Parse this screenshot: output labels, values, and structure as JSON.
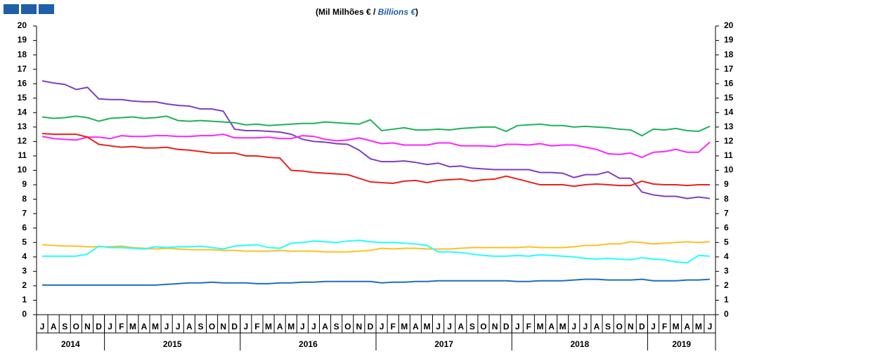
{
  "chart_data": {
    "type": "line",
    "title": [
      "(Mil Milhões € / ",
      "Billions €",
      ")"
    ],
    "categories": [
      "J",
      "A",
      "S",
      "O",
      "N",
      "D",
      "J",
      "F",
      "M",
      "A",
      "M",
      "J",
      "J",
      "A",
      "S",
      "O",
      "N",
      "D",
      "J",
      "F",
      "M",
      "A",
      "M",
      "J",
      "J",
      "A",
      "S",
      "O",
      "N",
      "D",
      "J",
      "F",
      "M",
      "A",
      "M",
      "J",
      "J",
      "A",
      "S",
      "O",
      "N",
      "D",
      "J",
      "F",
      "M",
      "A",
      "M",
      "J",
      "J",
      "A",
      "S",
      "O",
      "N",
      "D",
      "J",
      "F",
      "M",
      "A",
      "M",
      "J"
    ],
    "years": [
      "2014",
      "2015",
      "2016",
      "2017",
      "2018",
      "2019"
    ],
    "ylim": [
      0,
      20
    ],
    "yticks": [
      0,
      1,
      2,
      3,
      4,
      5,
      6,
      7,
      8,
      9,
      10,
      11,
      12,
      13,
      14,
      15,
      16,
      17,
      18,
      19,
      20
    ],
    "series": [
      {
        "color": "#7f3fbf",
        "values": [
          16.2,
          16.05,
          15.95,
          15.6,
          15.75,
          14.95,
          14.9,
          14.9,
          14.8,
          14.75,
          14.75,
          14.6,
          14.5,
          14.45,
          14.25,
          14.25,
          14.1,
          12.85,
          12.75,
          12.75,
          12.7,
          12.65,
          12.5,
          12.15,
          12.0,
          11.95,
          11.85,
          11.8,
          11.4,
          10.8,
          10.6,
          10.6,
          10.65,
          10.55,
          10.4,
          10.5,
          10.25,
          10.3,
          10.15,
          10.1,
          10.05,
          10.05,
          10.05,
          10.05,
          9.85,
          9.85,
          9.8,
          9.5,
          9.7,
          9.7,
          9.9,
          9.45,
          9.45,
          8.5,
          8.3,
          8.2,
          8.2,
          8.05,
          8.15,
          8.05
        ]
      },
      {
        "color": "#1db35a",
        "values": [
          13.7,
          13.6,
          13.65,
          13.75,
          13.65,
          13.4,
          13.6,
          13.65,
          13.7,
          13.6,
          13.65,
          13.75,
          13.45,
          13.4,
          13.45,
          13.4,
          13.35,
          13.3,
          13.15,
          13.2,
          13.1,
          13.15,
          13.2,
          13.25,
          13.25,
          13.35,
          13.3,
          13.25,
          13.2,
          13.5,
          12.75,
          12.85,
          12.95,
          12.8,
          12.8,
          12.85,
          12.8,
          12.9,
          12.95,
          13.0,
          13.0,
          12.7,
          13.1,
          13.15,
          13.2,
          13.1,
          13.1,
          13.0,
          13.05,
          13.0,
          12.95,
          12.85,
          12.8,
          12.4,
          12.85,
          12.8,
          12.9,
          12.75,
          12.7,
          13.05
        ]
      },
      {
        "color": "#ff22ff",
        "values": [
          12.35,
          12.2,
          12.15,
          12.1,
          12.3,
          12.3,
          12.2,
          12.4,
          12.35,
          12.35,
          12.4,
          12.4,
          12.35,
          12.35,
          12.4,
          12.4,
          12.5,
          12.25,
          12.25,
          12.25,
          12.3,
          12.2,
          12.2,
          12.4,
          12.35,
          12.15,
          12.05,
          12.1,
          12.25,
          12.05,
          11.85,
          11.9,
          11.75,
          11.75,
          11.75,
          11.9,
          11.9,
          11.7,
          11.7,
          11.7,
          11.65,
          11.8,
          11.8,
          11.75,
          11.85,
          11.7,
          11.75,
          11.75,
          11.6,
          11.45,
          11.15,
          11.1,
          11.2,
          10.9,
          11.25,
          11.3,
          11.45,
          11.25,
          11.25,
          11.95
        ]
      },
      {
        "color": "#e8221e",
        "values": [
          12.55,
          12.5,
          12.5,
          12.5,
          12.3,
          11.8,
          11.7,
          11.6,
          11.65,
          11.55,
          11.55,
          11.6,
          11.45,
          11.4,
          11.3,
          11.2,
          11.2,
          11.2,
          11.0,
          11.0,
          10.9,
          10.85,
          10.0,
          9.95,
          9.85,
          9.8,
          9.75,
          9.7,
          9.45,
          9.2,
          9.15,
          9.1,
          9.25,
          9.3,
          9.15,
          9.3,
          9.35,
          9.4,
          9.25,
          9.35,
          9.4,
          9.6,
          9.4,
          9.2,
          9.0,
          9.0,
          9.0,
          8.9,
          9.0,
          9.05,
          9.0,
          8.95,
          8.95,
          9.25,
          9.05,
          9.0,
          9.0,
          8.95,
          9.0,
          9.0
        ]
      },
      {
        "color": "#ffc020",
        "values": [
          4.85,
          4.8,
          4.75,
          4.75,
          4.7,
          4.7,
          4.7,
          4.75,
          4.65,
          4.6,
          4.55,
          4.6,
          4.55,
          4.5,
          4.5,
          4.5,
          4.45,
          4.45,
          4.4,
          4.4,
          4.4,
          4.45,
          4.4,
          4.4,
          4.4,
          4.35,
          4.35,
          4.35,
          4.4,
          4.45,
          4.6,
          4.55,
          4.6,
          4.6,
          4.55,
          4.55,
          4.55,
          4.6,
          4.65,
          4.65,
          4.65,
          4.65,
          4.65,
          4.7,
          4.65,
          4.65,
          4.65,
          4.7,
          4.8,
          4.8,
          4.9,
          4.9,
          5.05,
          5.0,
          4.9,
          4.95,
          5.0,
          5.05,
          5.0,
          5.05
        ]
      },
      {
        "color": "#22ffff",
        "values": [
          4.05,
          4.05,
          4.05,
          4.05,
          4.2,
          4.75,
          4.65,
          4.65,
          4.6,
          4.55,
          4.7,
          4.65,
          4.7,
          4.7,
          4.75,
          4.65,
          4.55,
          4.75,
          4.8,
          4.85,
          4.65,
          4.6,
          4.95,
          5.0,
          5.1,
          5.05,
          5.0,
          5.1,
          5.15,
          5.05,
          5.0,
          5.0,
          4.95,
          4.9,
          4.8,
          4.35,
          4.35,
          4.3,
          4.2,
          4.1,
          4.05,
          4.05,
          4.1,
          4.05,
          4.15,
          4.1,
          4.05,
          4.0,
          3.9,
          3.85,
          3.9,
          3.85,
          3.8,
          3.95,
          3.85,
          3.8,
          3.65,
          3.6,
          4.1,
          4.05
        ]
      },
      {
        "color": "#1f6fbf",
        "values": [
          2.05,
          2.05,
          2.05,
          2.05,
          2.05,
          2.05,
          2.05,
          2.05,
          2.05,
          2.05,
          2.05,
          2.1,
          2.15,
          2.2,
          2.2,
          2.25,
          2.2,
          2.2,
          2.2,
          2.15,
          2.15,
          2.2,
          2.2,
          2.25,
          2.25,
          2.3,
          2.3,
          2.3,
          2.3,
          2.3,
          2.2,
          2.25,
          2.25,
          2.3,
          2.3,
          2.35,
          2.35,
          2.35,
          2.35,
          2.35,
          2.35,
          2.35,
          2.3,
          2.3,
          2.35,
          2.35,
          2.35,
          2.4,
          2.45,
          2.45,
          2.4,
          2.4,
          2.4,
          2.45,
          2.35,
          2.35,
          2.35,
          2.4,
          2.4,
          2.45
        ]
      }
    ]
  }
}
